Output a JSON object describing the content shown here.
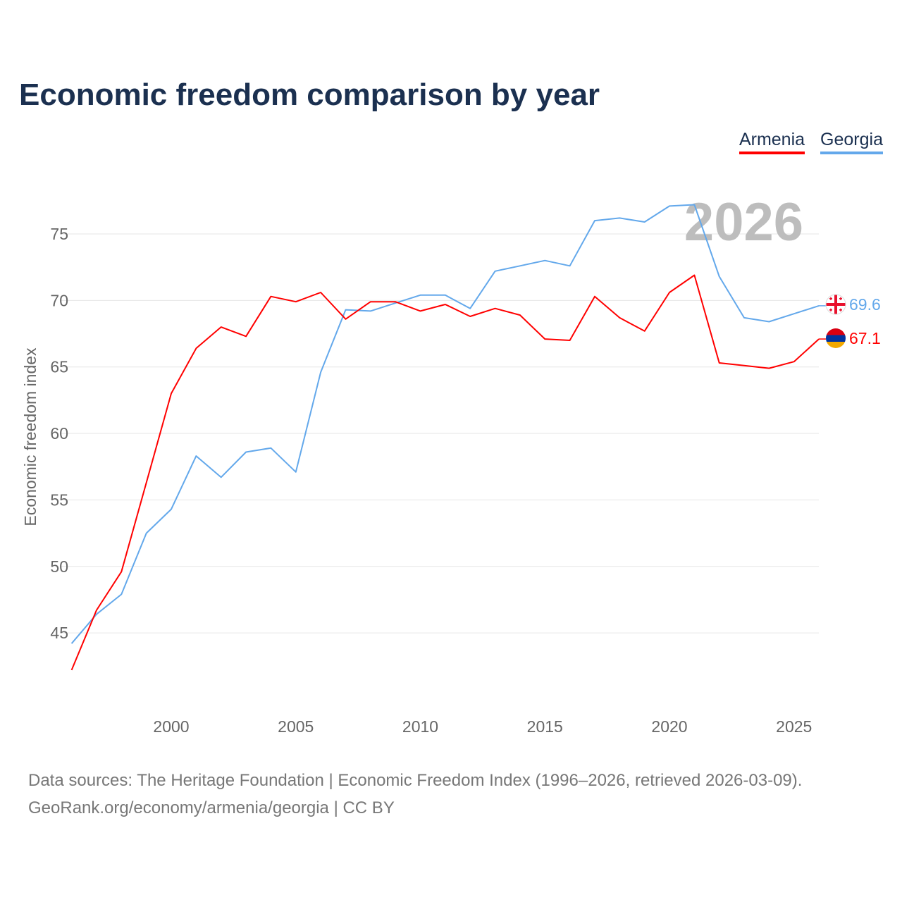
{
  "chart_data": {
    "type": "line",
    "title": "Economic freedom comparison by year",
    "xlabel": "",
    "ylabel": "Economic freedom index",
    "xlim": [
      1996,
      2026
    ],
    "ylim": [
      39.6,
      79
    ],
    "grid": true,
    "legend_position": "top-right",
    "x_ticks": [
      2000,
      2005,
      2010,
      2015,
      2020,
      2025
    ],
    "y_ticks": [
      45,
      50,
      55,
      60,
      65,
      70,
      75
    ],
    "annotation": "2026",
    "x": [
      1996,
      1997,
      1998,
      1999,
      2000,
      2001,
      2002,
      2003,
      2004,
      2005,
      2006,
      2007,
      2008,
      2009,
      2010,
      2011,
      2012,
      2013,
      2014,
      2015,
      2016,
      2017,
      2018,
      2019,
      2020,
      2021,
      2022,
      2023,
      2024,
      2025,
      2026
    ],
    "series": [
      {
        "name": "Armenia",
        "color": "#ff0000",
        "end_label": "67.1",
        "values": [
          42.2,
          46.7,
          49.6,
          56.3,
          63.0,
          66.4,
          68.0,
          67.3,
          70.3,
          69.9,
          70.6,
          68.6,
          69.9,
          69.9,
          69.2,
          69.7,
          68.8,
          69.4,
          68.9,
          67.1,
          67.0,
          70.3,
          68.7,
          67.7,
          70.6,
          71.9,
          65.3,
          65.1,
          64.9,
          65.4,
          67.1
        ]
      },
      {
        "name": "Georgia",
        "color": "#63a8eb",
        "end_label": "69.6",
        "values": [
          44.2,
          46.4,
          47.9,
          52.5,
          54.3,
          58.3,
          56.7,
          58.6,
          58.9,
          57.1,
          64.6,
          69.3,
          69.2,
          69.8,
          70.4,
          70.4,
          69.4,
          72.2,
          72.6,
          73.0,
          72.6,
          76.0,
          76.2,
          75.9,
          77.1,
          77.2,
          71.8,
          68.7,
          68.4,
          69.0,
          69.6
        ]
      }
    ]
  },
  "footer": {
    "line1": "Data sources: The Heritage Foundation | Economic Freedom Index (1996–2026, retrieved 2026-03-09).",
    "line2": "GeoRank.org/economy/armenia/georgia | CC BY"
  }
}
